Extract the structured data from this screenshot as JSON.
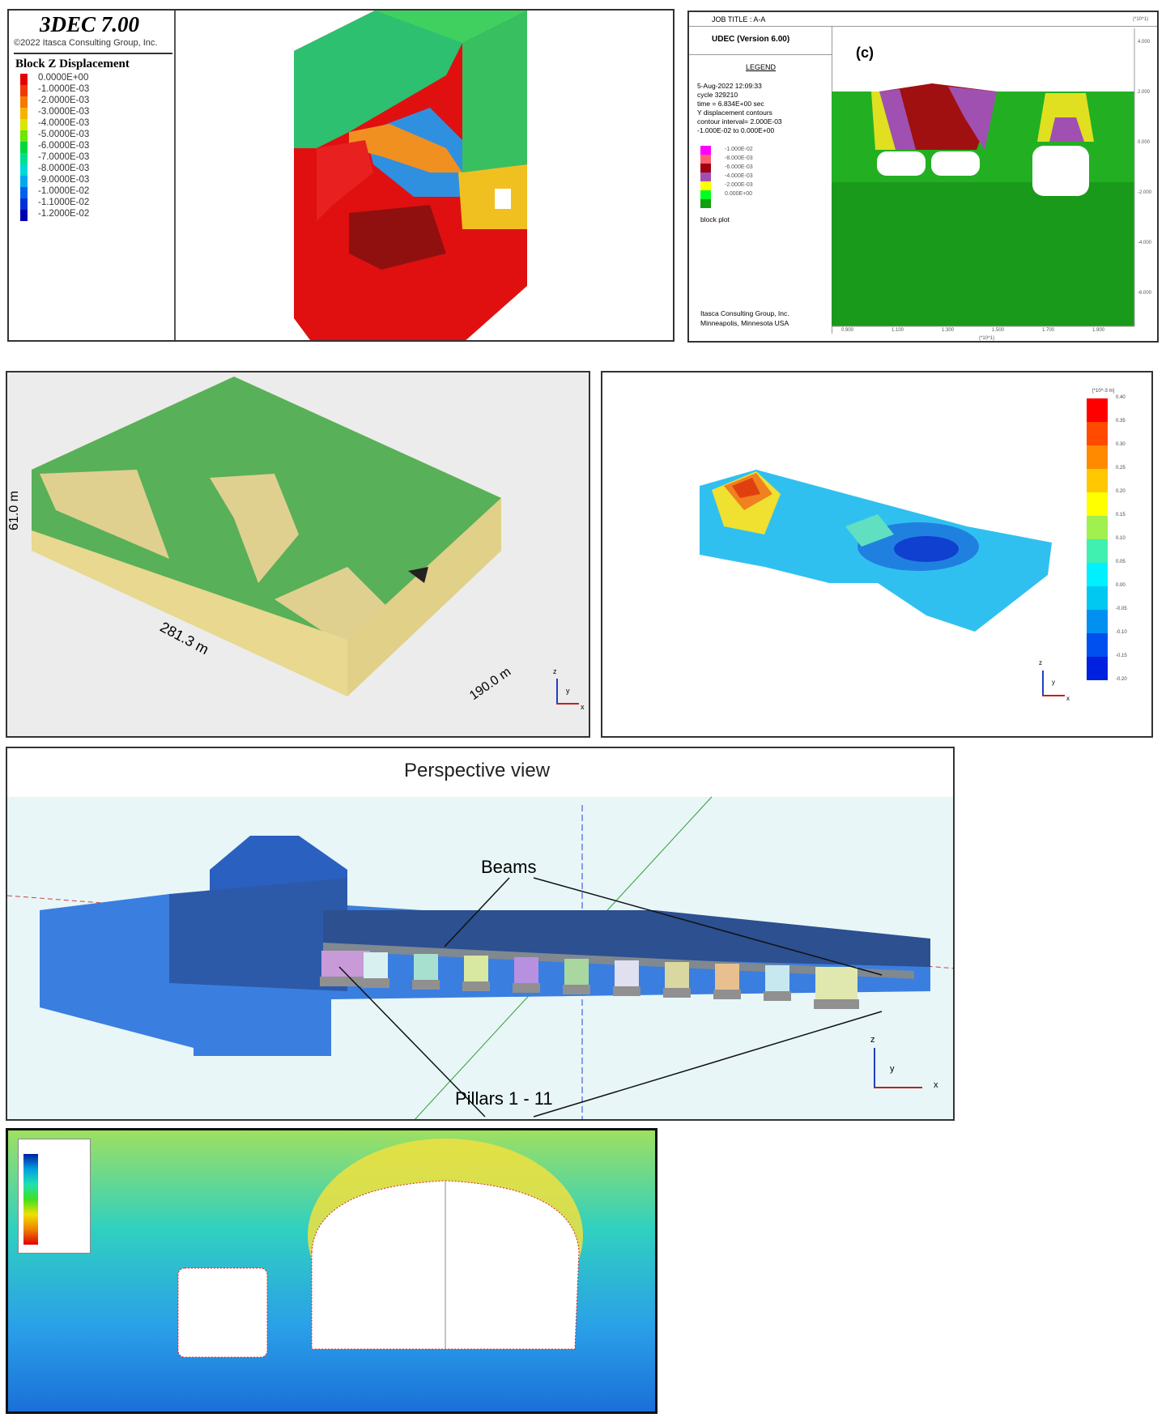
{
  "panel_3dec": {
    "title": "3DEC 7.00",
    "copyright": "©2022 Itasca Consulting Group, Inc.",
    "legend_title": "Block  Z Displacement",
    "legend_values": [
      "0.0000E+00",
      "-1.0000E-03",
      "-2.0000E-03",
      "-3.0000E-03",
      "-4.0000E-03",
      "-5.0000E-03",
      "-6.0000E-03",
      "-7.0000E-03",
      "-8.0000E-03",
      "-9.0000E-03",
      "-1.0000E-02",
      "-1.1000E-02",
      "-1.2000E-02"
    ],
    "legend_colors": [
      "#e60000",
      "#f03a00",
      "#f57a00",
      "#f5b400",
      "#d8e600",
      "#6ee600",
      "#00d83c",
      "#00e08c",
      "#00d8d8",
      "#00a8f0",
      "#0060f0",
      "#0030d8",
      "#0000b0"
    ]
  },
  "panel_udec": {
    "job_title": "JOB TITLE :  A-A",
    "version": "UDEC (Version 6.00)",
    "label": "(c)",
    "legend_heading": "LEGEND",
    "info": [
      "5-Aug-2022  12:09:33",
      "cycle   329210",
      "time  =  6.834E+00 sec",
      "Y displacement contours",
      "contour interval= 2.000E-03",
      "-1.000E-02 to  0.000E+00"
    ],
    "legend_values": [
      "-1.000E-02",
      "-8.000E-03",
      "-6.000E-03",
      "-4.000E-03",
      "-2.000E-03",
      "0.000E+00"
    ],
    "legend_colors": [
      "#ff00ff",
      "#ff6070",
      "#a00010",
      "#a050b0",
      "#ffff00",
      "#00ff20",
      "#10a010"
    ],
    "block_plot": "block plot",
    "footer": [
      "Itasca Consulting Group, Inc.",
      "Minneapolis, Minnesota  USA"
    ],
    "x_ticks": [
      "0.900",
      "1.100",
      "1.300",
      "1.500",
      "1.700",
      "1.900"
    ],
    "y_ticks": [
      "4.000",
      "2.000",
      "0.000",
      "-2.000",
      "-4.000",
      "-6.000"
    ],
    "x_unit": "(*10^1)",
    "y_unit": "(*10^1)"
  },
  "panel_mesh": {
    "dim_height": "61.0 m",
    "dim_length": "281.3 m",
    "dim_width": "190.0 m",
    "axes": [
      "z",
      "y",
      "x"
    ]
  },
  "panel_contour": {
    "unit": "[*10^-3 m]",
    "colorbar_values": [
      "0.40",
      "0.35",
      "0.30",
      "0.25",
      "0.20",
      "0.15",
      "0.10",
      "0.05",
      "0.00",
      "-0.05",
      "-0.10",
      "-0.15",
      "-0.20"
    ],
    "colorbar_colors": [
      "#ff0000",
      "#ff4a00",
      "#ff8a00",
      "#ffc800",
      "#ffff00",
      "#a0f050",
      "#40f0b0",
      "#00f0ff",
      "#00c8f0",
      "#0090f0",
      "#0050f0",
      "#0020e0"
    ],
    "axes": [
      "z",
      "y",
      "x"
    ]
  },
  "panel_perspective": {
    "title": "Perspective view",
    "label_beams": "Beams",
    "label_pillars": "Pillars 1 - 11",
    "axes": [
      "z",
      "y",
      "x"
    ],
    "pillar_colors": [
      "#c89ad8",
      "#d8f0f0",
      "#a8e0d0",
      "#d8e8a0",
      "#b890e0",
      "#a8d8a0",
      "#e0e0f0",
      "#d8d8a0",
      "#e8c090",
      "#c8e8f0",
      "#e0e8b0"
    ]
  },
  "panel_support": {}
}
